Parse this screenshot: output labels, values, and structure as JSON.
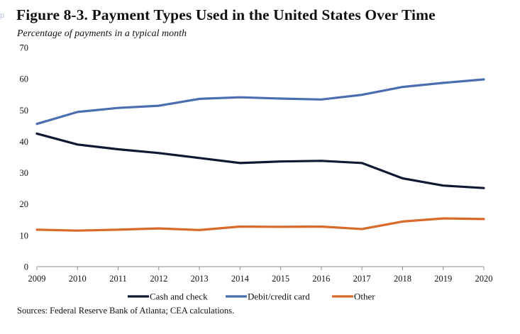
{
  "corner_mark": "p",
  "chart_data": {
    "type": "line",
    "title": "Figure 8-3. Payment Types Used in the United States Over Time",
    "subtitle": "Percentage of payments in a typical month",
    "source": "Sources: Federal Reserve Bank of Atlanta; CEA calculations.",
    "x": [
      "2009",
      "2010",
      "2011",
      "2012",
      "2013",
      "2014",
      "2015",
      "2016",
      "2017",
      "2018",
      "2019",
      "2020"
    ],
    "ylim": [
      0,
      70
    ],
    "yticks": [
      "0",
      "10",
      "20",
      "30",
      "40",
      "50",
      "60",
      "70"
    ],
    "grid": false,
    "legend_position": "bottom",
    "series": [
      {
        "name": "Cash and check",
        "color": "#0e1a33",
        "values": [
          42.5,
          39.0,
          37.5,
          36.3,
          34.7,
          33.1,
          33.6,
          33.8,
          33.1,
          28.2,
          25.9,
          25.1
        ]
      },
      {
        "name": "Debit/credit card",
        "color": "#4a6eb0",
        "values": [
          45.6,
          49.4,
          50.7,
          51.4,
          53.6,
          54.1,
          53.7,
          53.4,
          54.9,
          57.4,
          58.7,
          59.8
        ]
      },
      {
        "name": "Other",
        "color": "#d96a2b",
        "values": [
          11.8,
          11.5,
          11.8,
          12.2,
          11.7,
          12.8,
          12.7,
          12.8,
          12.0,
          14.4,
          15.4,
          15.2
        ]
      }
    ]
  }
}
